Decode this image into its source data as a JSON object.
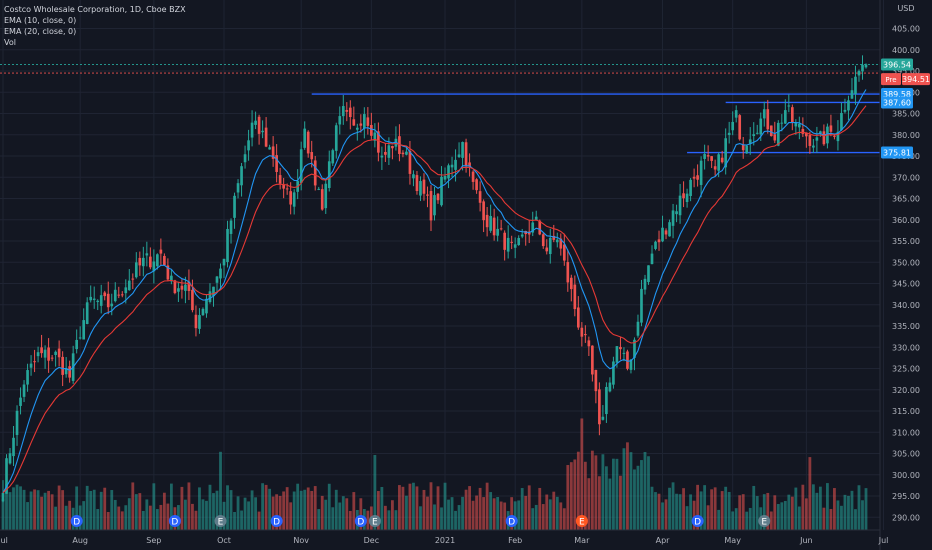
{
  "legend": {
    "title": "Costco Wholesale Corporation, 1D, Cboe BZX",
    "ema1": "EMA (10, close, 0)",
    "ema2": "EMA (20, close, 0)",
    "vol": "Vol"
  },
  "currency": "USD",
  "colors": {
    "background": "#131722",
    "grid": "#1f2433",
    "up": "#26a69a",
    "down": "#ef5350",
    "ema10": "#2196f3",
    "ema20": "#e53935",
    "hline": "#2962ff",
    "axis_text": "#b2b5be",
    "price_tag": "#26a69a",
    "pre_tag": "#ef5350",
    "line_tag": "#2196f3"
  },
  "chart_data": {
    "type": "candlestick",
    "title": "Costco Wholesale Corporation, 1D, Cboe BZX",
    "ylim": [
      287,
      407
    ],
    "y_ticks": [
      290,
      295,
      300,
      305,
      310,
      315,
      320,
      325,
      330,
      335,
      340,
      345,
      350,
      355,
      360,
      365,
      370,
      375,
      380,
      385,
      390,
      395,
      400,
      405
    ],
    "x_ticks": [
      {
        "label": "Jul",
        "index": 0
      },
      {
        "label": "Aug",
        "index": 22
      },
      {
        "label": "Sep",
        "index": 43
      },
      {
        "label": "Oct",
        "index": 63
      },
      {
        "label": "Nov",
        "index": 85
      },
      {
        "label": "Dec",
        "index": 105
      },
      {
        "label": "2021",
        "index": 126
      },
      {
        "label": "Feb",
        "index": 146
      },
      {
        "label": "Mar",
        "index": 165
      },
      {
        "label": "Apr",
        "index": 188
      },
      {
        "label": "May",
        "index": 208
      },
      {
        "label": "Jun",
        "index": 229
      },
      {
        "label": "Jul",
        "index": 251
      }
    ],
    "key_closes": [
      {
        "index": 0,
        "value": 298
      },
      {
        "index": 3,
        "value": 310
      },
      {
        "index": 6,
        "value": 322
      },
      {
        "index": 10,
        "value": 328
      },
      {
        "index": 15,
        "value": 328
      },
      {
        "index": 19,
        "value": 323
      },
      {
        "index": 22,
        "value": 334
      },
      {
        "index": 25,
        "value": 341
      },
      {
        "index": 30,
        "value": 340
      },
      {
        "index": 36,
        "value": 346
      },
      {
        "index": 40,
        "value": 350
      },
      {
        "index": 45,
        "value": 352
      },
      {
        "index": 48,
        "value": 345
      },
      {
        "index": 52,
        "value": 344
      },
      {
        "index": 55,
        "value": 336
      },
      {
        "index": 58,
        "value": 342
      },
      {
        "index": 62,
        "value": 348
      },
      {
        "index": 65,
        "value": 360
      },
      {
        "index": 68,
        "value": 372
      },
      {
        "index": 71,
        "value": 382
      },
      {
        "index": 74,
        "value": 380
      },
      {
        "index": 77,
        "value": 375
      },
      {
        "index": 80,
        "value": 366
      },
      {
        "index": 83,
        "value": 365
      },
      {
        "index": 86,
        "value": 383
      },
      {
        "index": 88,
        "value": 372
      },
      {
        "index": 91,
        "value": 364
      },
      {
        "index": 94,
        "value": 378
      },
      {
        "index": 97,
        "value": 385
      },
      {
        "index": 100,
        "value": 381
      },
      {
        "index": 103,
        "value": 386
      },
      {
        "index": 106,
        "value": 380
      },
      {
        "index": 108,
        "value": 374
      },
      {
        "index": 111,
        "value": 378
      },
      {
        "index": 114,
        "value": 376
      },
      {
        "index": 118,
        "value": 369
      },
      {
        "index": 122,
        "value": 362
      },
      {
        "index": 125,
        "value": 368
      },
      {
        "index": 128,
        "value": 374
      },
      {
        "index": 131,
        "value": 378
      },
      {
        "index": 134,
        "value": 368
      },
      {
        "index": 138,
        "value": 360
      },
      {
        "index": 142,
        "value": 356
      },
      {
        "index": 146,
        "value": 352
      },
      {
        "index": 149,
        "value": 357
      },
      {
        "index": 152,
        "value": 359
      },
      {
        "index": 155,
        "value": 353
      },
      {
        "index": 158,
        "value": 356
      },
      {
        "index": 161,
        "value": 346
      },
      {
        "index": 164,
        "value": 336
      },
      {
        "index": 167,
        "value": 328
      },
      {
        "index": 169,
        "value": 318
      },
      {
        "index": 170,
        "value": 310
      },
      {
        "index": 172,
        "value": 320
      },
      {
        "index": 175,
        "value": 330
      },
      {
        "index": 178,
        "value": 325
      },
      {
        "index": 180,
        "value": 332
      },
      {
        "index": 182,
        "value": 343
      },
      {
        "index": 185,
        "value": 352
      },
      {
        "index": 188,
        "value": 357
      },
      {
        "index": 191,
        "value": 362
      },
      {
        "index": 194,
        "value": 366
      },
      {
        "index": 197,
        "value": 370
      },
      {
        "index": 200,
        "value": 374
      },
      {
        "index": 203,
        "value": 371
      },
      {
        "index": 206,
        "value": 378
      },
      {
        "index": 209,
        "value": 384
      },
      {
        "index": 211,
        "value": 378
      },
      {
        "index": 214,
        "value": 382
      },
      {
        "index": 217,
        "value": 384
      },
      {
        "index": 220,
        "value": 380
      },
      {
        "index": 223,
        "value": 386
      },
      {
        "index": 226,
        "value": 382
      },
      {
        "index": 229,
        "value": 380
      },
      {
        "index": 232,
        "value": 378
      },
      {
        "index": 235,
        "value": 380
      },
      {
        "index": 238,
        "value": 382
      },
      {
        "index": 241,
        "value": 390
      },
      {
        "index": 243,
        "value": 393
      },
      {
        "index": 245,
        "value": 396.54
      }
    ],
    "horizontal_lines": [
      {
        "value": 389.58,
        "start_index": 88
      },
      {
        "value": 387.6,
        "start_index": 206
      },
      {
        "value": 375.81,
        "start_index": 195
      }
    ],
    "last_price": 396.54,
    "pre_price": 394.51,
    "price_labels": {
      "last": "396.54",
      "pre_label": "Pre",
      "pre": "394.51",
      "line1": "389.58",
      "line2": "387.60",
      "line3": "375.81"
    },
    "events": [
      {
        "index": 21,
        "letter": "D",
        "color": "#2962ff"
      },
      {
        "index": 49,
        "letter": "D",
        "color": "#2962ff"
      },
      {
        "index": 62,
        "letter": "E",
        "color": "#607d8b"
      },
      {
        "index": 78,
        "letter": "D",
        "color": "#2962ff"
      },
      {
        "index": 102,
        "letter": "D",
        "color": "#2962ff"
      },
      {
        "index": 106,
        "letter": "E",
        "color": "#607d8b"
      },
      {
        "index": 145,
        "letter": "D",
        "color": "#2962ff"
      },
      {
        "index": 165,
        "letter": "E",
        "color": "#ff5722"
      },
      {
        "index": 198,
        "letter": "D",
        "color": "#2962ff"
      },
      {
        "index": 217,
        "letter": "E",
        "color": "#607d8b"
      }
    ]
  }
}
